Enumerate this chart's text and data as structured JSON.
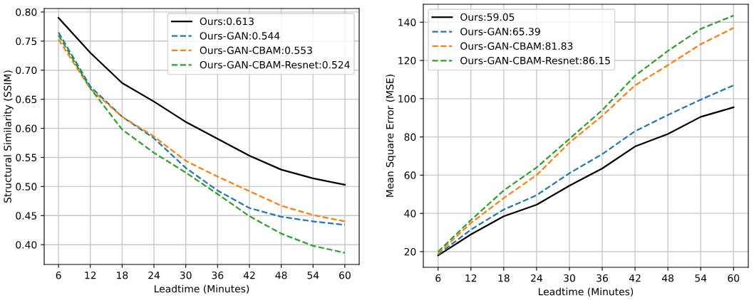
{
  "chart_data": [
    {
      "type": "line",
      "xlabel": "Leadtime (Minutes)",
      "ylabel": "Structural Similarity (SSIM)",
      "x": [
        6,
        12,
        18,
        24,
        30,
        36,
        42,
        48,
        54,
        60
      ],
      "xlim": [
        3.3,
        62.7
      ],
      "xticks": [
        6,
        12,
        18,
        24,
        30,
        36,
        42,
        48,
        54,
        60
      ],
      "ylim": [
        0.366,
        0.806
      ],
      "yticks": [
        {
          "value": 0.4,
          "label": "0.40"
        },
        {
          "value": 0.45,
          "label": "0.45"
        },
        {
          "value": 0.5,
          "label": "0.50"
        },
        {
          "value": 0.55,
          "label": "0.55"
        },
        {
          "value": 0.6,
          "label": "0.60"
        },
        {
          "value": 0.65,
          "label": "0.65"
        },
        {
          "value": 0.7,
          "label": "0.70"
        },
        {
          "value": 0.75,
          "label": "0.75"
        },
        {
          "value": 0.8,
          "label": "0.80"
        }
      ],
      "grid": true,
      "legend": "top right",
      "series": [
        {
          "name": "Ours:0.613",
          "color": "#000000",
          "line_style": "solid",
          "values": [
            0.79,
            0.73,
            0.678,
            0.646,
            0.611,
            0.582,
            0.553,
            0.529,
            0.514,
            0.503
          ]
        },
        {
          "name": "Ours-GAN:0.544",
          "color": "#1f77b4",
          "line_style": "dashed",
          "values": [
            0.765,
            0.672,
            0.62,
            0.583,
            0.532,
            0.493,
            0.463,
            0.448,
            0.44,
            0.434
          ]
        },
        {
          "name": "Ours-GAN-CBAM:0.553",
          "color": "#ff7f0e",
          "line_style": "dashed",
          "values": [
            0.753,
            0.668,
            0.62,
            0.586,
            0.544,
            0.517,
            0.492,
            0.467,
            0.451,
            0.44
          ]
        },
        {
          "name": "Ours-GAN-CBAM-Resnet:0.524",
          "color": "#2ca02c",
          "line_style": "dashed",
          "values": [
            0.76,
            0.669,
            0.598,
            0.558,
            0.524,
            0.487,
            0.449,
            0.419,
            0.398,
            0.386
          ]
        }
      ]
    },
    {
      "type": "line",
      "xlabel": "Leadtime (Minutes)",
      "ylabel": "Mean Square Error (MSE)",
      "x": [
        6,
        12,
        18,
        24,
        30,
        36,
        42,
        48,
        54,
        60
      ],
      "xlim": [
        3.3,
        62.7
      ],
      "xticks": [
        6,
        12,
        18,
        24,
        30,
        36,
        42,
        48,
        54,
        60
      ],
      "ylim": [
        11.8,
        149.4
      ],
      "yticks": [
        20,
        40,
        60,
        80,
        100,
        120,
        140
      ],
      "grid": true,
      "legend": "top left",
      "series": [
        {
          "name": "Ours:59.05",
          "color": "#000000",
          "line_style": "solid",
          "values": [
            18,
            29,
            38.5,
            44.5,
            54.5,
            63.5,
            75,
            81.5,
            90.5,
            95.5
          ]
        },
        {
          "name": "Ours-GAN:65.39",
          "color": "#1f77b4",
          "line_style": "dashed",
          "values": [
            18.5,
            31.5,
            42,
            49.5,
            61,
            71,
            83,
            91.5,
            99.5,
            107
          ]
        },
        {
          "name": "Ours-GAN-CBAM:81.83",
          "color": "#ff7f0e",
          "line_style": "dashed",
          "values": [
            19,
            35,
            48,
            60,
            77,
            91,
            107,
            117.5,
            128.5,
            137
          ]
        },
        {
          "name": "Ours-GAN-CBAM-Resnet:86.15",
          "color": "#2ca02c",
          "line_style": "dashed",
          "values": [
            20,
            36.5,
            52,
            64,
            79,
            94,
            112,
            125,
            136.5,
            143.5
          ]
        }
      ]
    }
  ]
}
